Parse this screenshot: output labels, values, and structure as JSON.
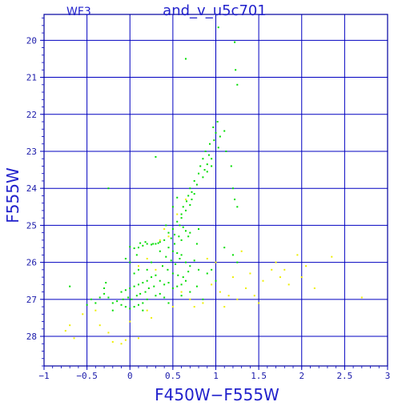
{
  "chart_data": {
    "type": "scatter",
    "title": "and_v_u5c701",
    "corner_label": "WF3",
    "xlabel": "F450W−F555W",
    "ylabel": "F555W",
    "xlim": [
      -1,
      3
    ],
    "ylim": [
      28.8,
      19.3
    ],
    "y_inverted": true,
    "grid": true,
    "x_ticks": [
      "−1",
      "−0.5",
      "0",
      "0.5",
      "1",
      "1.5",
      "2",
      "2.5",
      "3"
    ],
    "x_tick_values": [
      -1,
      -0.5,
      0,
      0.5,
      1,
      1.5,
      2,
      2.5,
      3
    ],
    "y_ticks": [
      "20",
      "21",
      "22",
      "23",
      "24",
      "25",
      "26",
      "27",
      "28"
    ],
    "y_tick_values": [
      20,
      21,
      22,
      23,
      24,
      25,
      26,
      27,
      28
    ],
    "colors": {
      "frame": "#0000a0",
      "grid": "#0000c0",
      "text": "#2222cc",
      "green": "#00dd00",
      "yellow": "#eeee00"
    },
    "series": [
      {
        "color": "green",
        "points": [
          [
            1.03,
            19.65
          ],
          [
            1.22,
            20.05
          ],
          [
            1.23,
            20.8
          ],
          [
            0.65,
            20.5
          ],
          [
            1.25,
            21.2
          ],
          [
            0.97,
            22.35
          ],
          [
            1.02,
            22.2
          ],
          [
            1.0,
            22.5
          ],
          [
            1.05,
            22.6
          ],
          [
            1.1,
            22.45
          ],
          [
            0.93,
            22.8
          ],
          [
            0.98,
            22.7
          ],
          [
            1.03,
            22.9
          ],
          [
            0.88,
            23.0
          ],
          [
            0.92,
            23.1
          ],
          [
            0.95,
            23.2
          ],
          [
            0.85,
            23.2
          ],
          [
            0.9,
            23.35
          ],
          [
            0.82,
            23.4
          ],
          [
            0.87,
            23.5
          ],
          [
            0.95,
            23.4
          ],
          [
            0.8,
            23.6
          ],
          [
            0.85,
            23.7
          ],
          [
            0.9,
            23.55
          ],
          [
            1.12,
            23.0
          ],
          [
            1.18,
            23.4
          ],
          [
            0.3,
            23.15
          ],
          [
            0.75,
            23.8
          ],
          [
            0.78,
            23.9
          ],
          [
            0.7,
            24.0
          ],
          [
            0.72,
            24.1
          ],
          [
            0.68,
            24.2
          ],
          [
            0.75,
            24.15
          ],
          [
            0.66,
            24.35
          ],
          [
            0.62,
            24.5
          ],
          [
            0.7,
            24.45
          ],
          [
            0.65,
            24.6
          ],
          [
            0.6,
            24.7
          ],
          [
            0.72,
            24.3
          ],
          [
            0.55,
            24.25
          ],
          [
            1.2,
            24.0
          ],
          [
            1.22,
            24.3
          ],
          [
            1.25,
            24.5
          ],
          [
            -0.25,
            24.0
          ],
          [
            0.5,
            24.5
          ],
          [
            0.6,
            24.8
          ],
          [
            0.55,
            24.9
          ],
          [
            0.58,
            25.0
          ],
          [
            0.62,
            25.05
          ],
          [
            0.5,
            25.1
          ],
          [
            0.65,
            25.15
          ],
          [
            0.52,
            25.25
          ],
          [
            0.57,
            25.3
          ],
          [
            0.45,
            25.2
          ],
          [
            0.6,
            25.4
          ],
          [
            0.48,
            25.35
          ],
          [
            0.68,
            25.3
          ],
          [
            0.7,
            25.2
          ],
          [
            0.8,
            25.1
          ],
          [
            0.78,
            25.5
          ],
          [
            0.4,
            25.4
          ],
          [
            0.35,
            25.45
          ],
          [
            0.3,
            25.5
          ],
          [
            0.25,
            25.52
          ],
          [
            0.2,
            25.5
          ],
          [
            0.15,
            25.55
          ],
          [
            0.1,
            25.6
          ],
          [
            0.05,
            25.62
          ],
          [
            0.0,
            25.58
          ],
          [
            0.33,
            25.48
          ],
          [
            0.27,
            25.5
          ],
          [
            0.18,
            25.45
          ],
          [
            0.12,
            25.48
          ],
          [
            0.45,
            25.6
          ],
          [
            0.5,
            25.7
          ],
          [
            0.55,
            25.75
          ],
          [
            0.6,
            25.8
          ],
          [
            0.42,
            25.85
          ],
          [
            0.48,
            25.95
          ],
          [
            0.53,
            26.05
          ],
          [
            0.58,
            25.9
          ],
          [
            0.65,
            26.0
          ],
          [
            0.7,
            26.1
          ],
          [
            0.75,
            25.95
          ],
          [
            0.38,
            26.1
          ],
          [
            0.44,
            26.2
          ],
          [
            0.5,
            26.3
          ],
          [
            0.56,
            26.35
          ],
          [
            0.62,
            26.4
          ],
          [
            0.68,
            26.25
          ],
          [
            0.8,
            26.2
          ],
          [
            0.9,
            26.3
          ],
          [
            1.0,
            26.5
          ],
          [
            0.3,
            26.35
          ],
          [
            0.25,
            26.4
          ],
          [
            0.2,
            26.5
          ],
          [
            0.15,
            26.55
          ],
          [
            0.1,
            26.6
          ],
          [
            0.05,
            26.65
          ],
          [
            0.0,
            26.7
          ],
          [
            -0.05,
            26.75
          ],
          [
            -0.1,
            26.8
          ],
          [
            0.35,
            26.5
          ],
          [
            0.4,
            26.6
          ],
          [
            0.45,
            26.55
          ],
          [
            0.5,
            26.7
          ],
          [
            0.55,
            26.65
          ],
          [
            0.6,
            26.6
          ],
          [
            0.65,
            26.5
          ],
          [
            0.28,
            26.65
          ],
          [
            0.22,
            26.7
          ],
          [
            0.18,
            26.8
          ],
          [
            0.12,
            26.85
          ],
          [
            0.08,
            26.9
          ],
          [
            0.02,
            27.0
          ],
          [
            -0.02,
            26.95
          ],
          [
            -0.08,
            27.0
          ],
          [
            -0.15,
            27.05
          ],
          [
            -0.2,
            27.1
          ],
          [
            -0.25,
            26.95
          ],
          [
            -0.3,
            26.85
          ],
          [
            -0.35,
            26.95
          ],
          [
            0.3,
            26.9
          ],
          [
            0.35,
            26.85
          ],
          [
            0.4,
            26.95
          ],
          [
            0.2,
            27.0
          ],
          [
            0.15,
            27.1
          ],
          [
            0.1,
            27.15
          ],
          [
            0.05,
            27.2
          ],
          [
            0.0,
            27.25
          ],
          [
            -0.05,
            27.2
          ],
          [
            -0.1,
            27.15
          ],
          [
            -0.4,
            27.1
          ],
          [
            -0.45,
            27.0
          ],
          [
            -0.3,
            26.7
          ],
          [
            -0.28,
            26.55
          ],
          [
            0.05,
            26.3
          ],
          [
            0.1,
            26.2
          ],
          [
            0.0,
            26.0
          ],
          [
            -0.05,
            25.9
          ],
          [
            0.08,
            25.8
          ],
          [
            0.6,
            26.9
          ],
          [
            0.7,
            26.8
          ],
          [
            0.85,
            27.0
          ],
          [
            0.95,
            26.2
          ],
          [
            1.1,
            25.6
          ],
          [
            1.2,
            25.8
          ],
          [
            1.25,
            26.0
          ],
          [
            -0.7,
            26.65
          ],
          [
            -0.5,
            27.15
          ],
          [
            -0.2,
            27.3
          ],
          [
            0.15,
            27.3
          ],
          [
            0.45,
            27.1
          ],
          [
            0.78,
            26.65
          ],
          [
            0.42,
            25.0
          ],
          [
            0.52,
            25.5
          ],
          [
            0.35,
            25.7
          ],
          [
            0.25,
            26.0
          ],
          [
            0.2,
            26.2
          ]
        ]
      },
      {
        "color": "yellow",
        "points": [
          [
            0.95,
            26.6
          ],
          [
            1.05,
            26.8
          ],
          [
            1.15,
            26.9
          ],
          [
            1.25,
            27.0
          ],
          [
            1.35,
            26.7
          ],
          [
            1.45,
            26.9
          ],
          [
            1.55,
            26.5
          ],
          [
            1.65,
            26.2
          ],
          [
            1.75,
            26.4
          ],
          [
            1.85,
            26.6
          ],
          [
            1.95,
            25.8
          ],
          [
            2.05,
            26.1
          ],
          [
            2.15,
            26.7
          ],
          [
            2.0,
            26.4
          ],
          [
            1.8,
            26.2
          ],
          [
            1.7,
            26.0
          ],
          [
            1.3,
            25.7
          ],
          [
            1.4,
            26.3
          ],
          [
            1.5,
            27.1
          ],
          [
            1.1,
            27.2
          ],
          [
            0.85,
            27.1
          ],
          [
            0.7,
            27.0
          ],
          [
            0.6,
            26.8
          ],
          [
            0.3,
            26.2
          ],
          [
            0.2,
            25.9
          ],
          [
            0.1,
            26.1
          ],
          [
            0.45,
            25.3
          ],
          [
            0.55,
            24.7
          ],
          [
            0.4,
            25.1
          ],
          [
            0.65,
            24.3
          ],
          [
            -0.7,
            27.7
          ],
          [
            -0.55,
            27.4
          ],
          [
            -0.35,
            27.7
          ],
          [
            -0.25,
            27.9
          ],
          [
            -0.2,
            28.15
          ],
          [
            -0.1,
            28.2
          ],
          [
            -0.05,
            28.1
          ],
          [
            0.1,
            28.05
          ],
          [
            0.0,
            27.6
          ],
          [
            -0.4,
            27.3
          ],
          [
            0.25,
            27.5
          ],
          [
            0.5,
            27.2
          ],
          [
            0.2,
            27.3
          ],
          [
            0.75,
            27.2
          ],
          [
            -0.65,
            28.05
          ],
          [
            -0.75,
            27.85
          ],
          [
            2.7,
            26.95
          ],
          [
            2.35,
            25.85
          ],
          [
            0.35,
            25.4
          ],
          [
            0.9,
            25.9
          ],
          [
            1.0,
            26.0
          ],
          [
            1.2,
            26.4
          ]
        ]
      }
    ]
  }
}
